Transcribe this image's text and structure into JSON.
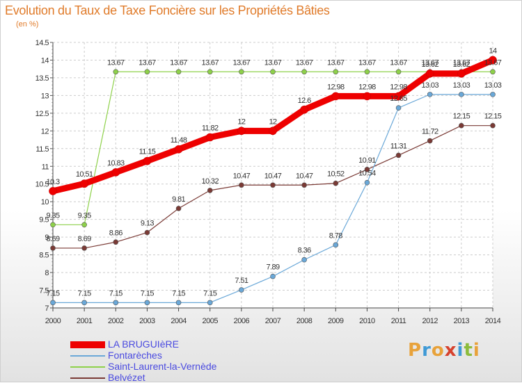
{
  "header": {
    "title": "Evolution du Taux de Taxe Foncière sur les Propriétés Bâties",
    "unit": "(en %)"
  },
  "logo": {
    "text": "Proxiti",
    "letters": [
      "P",
      "r",
      "o",
      "x",
      "i",
      "t",
      "i"
    ],
    "colors": [
      "#e8a23a",
      "#3f9ad6",
      "#e8a23a",
      "#d6422e",
      "#3f9ad6",
      "#8cbc3c",
      "#e8a23a"
    ]
  },
  "chart_data": {
    "type": "line",
    "title": "Evolution du Taux de Taxe Foncière sur les Propriétés Bâties",
    "ylabel": "(en %)",
    "xlabel": "",
    "x": [
      "2000",
      "2001",
      "2002",
      "2003",
      "2004",
      "2005",
      "2006",
      "2007",
      "2008",
      "2009",
      "2010",
      "2011",
      "2012",
      "2013",
      "2014"
    ],
    "ylim": [
      7,
      14.5
    ],
    "yticks": [
      "7",
      "7.5",
      "8",
      "8.5",
      "9",
      "9.5",
      "10",
      "10.5",
      "11",
      "11.5",
      "12",
      "12.5",
      "13",
      "13.5",
      "14",
      "14.5"
    ],
    "grid": true,
    "legend_position": "bottom-left",
    "series": [
      {
        "name": "LA BRUGUIèRE",
        "color": "#ee0000",
        "width": 9,
        "values": [
          10.3,
          10.51,
          10.83,
          11.15,
          11.48,
          11.82,
          12,
          12,
          12.6,
          12.98,
          12.98,
          12.98,
          13.62,
          13.62,
          14
        ],
        "labels": [
          "10.3",
          "10.51",
          "10.83",
          "11.15",
          "11.48",
          "11.82",
          "12",
          "12",
          "12.6",
          "12.98",
          "12.98",
          "12.98",
          "13.62",
          "13.62",
          "14"
        ]
      },
      {
        "name": "Fontarèches",
        "color": "#6aa8d8",
        "width": 1.2,
        "values": [
          7.15,
          7.15,
          7.15,
          7.15,
          7.15,
          7.15,
          7.51,
          7.89,
          8.36,
          8.78,
          10.54,
          12.65,
          13.03,
          13.03,
          13.03
        ],
        "labels": [
          "7.15",
          "7.15",
          "7.15",
          "7.15",
          "7.15",
          "7.15",
          "7.51",
          "7.89",
          "8.36",
          "8.78",
          "10.54",
          "12.65",
          "13.03",
          "13.03",
          "13.03"
        ]
      },
      {
        "name": "Saint-Laurent-la-Vernède",
        "color": "#8ed14a",
        "width": 1.2,
        "values": [
          9.35,
          9.35,
          13.67,
          13.67,
          13.67,
          13.67,
          13.67,
          13.67,
          13.67,
          13.67,
          13.67,
          13.67,
          13.67,
          13.67,
          13.67
        ],
        "labels": [
          "9.35",
          "9.35",
          "13.67",
          "13.67",
          "13.67",
          "13.67",
          "13.67",
          "13.67",
          "13.67",
          "13.67",
          "13.67",
          "13.67",
          "13.67",
          "13.67",
          "13.67"
        ]
      },
      {
        "name": "Belvézet",
        "color": "#7a3a35",
        "width": 1.2,
        "values": [
          8.69,
          8.69,
          8.86,
          9.13,
          9.81,
          10.32,
          10.47,
          10.47,
          10.47,
          10.52,
          10.91,
          11.31,
          11.72,
          12.15,
          12.15
        ],
        "labels": [
          "8.69",
          "8.69",
          "8.86",
          "9.13",
          "9.81",
          "10.32",
          "10.47",
          "10.47",
          "10.47",
          "10.52",
          "10.91",
          "11.31",
          "11.72",
          "12.15",
          "12.15"
        ]
      }
    ]
  }
}
